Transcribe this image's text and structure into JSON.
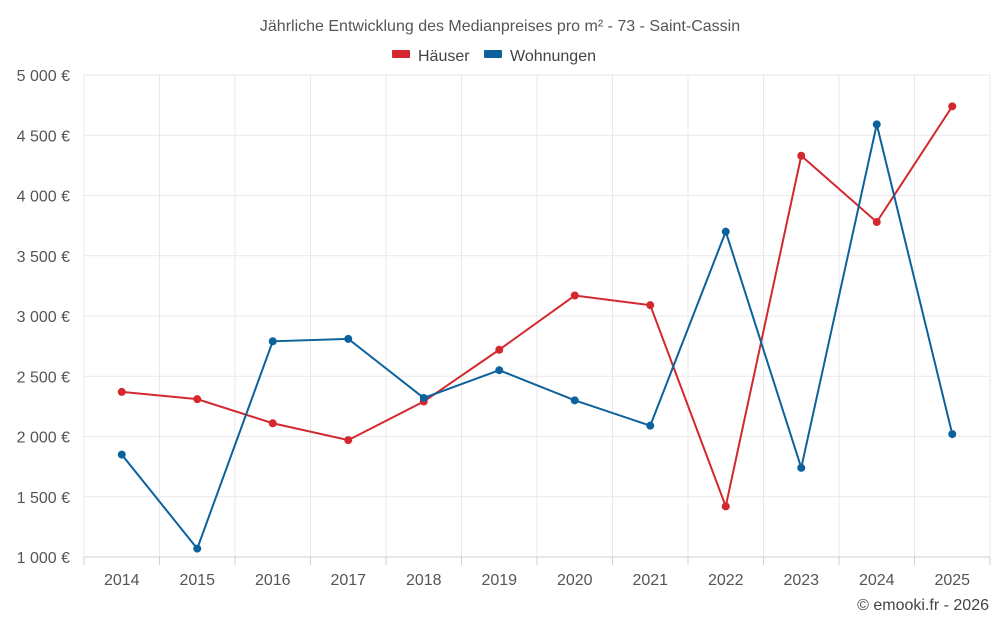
{
  "chart_data": {
    "type": "line",
    "title": "Jährliche Entwicklung des Medianpreises pro m² - 73 - Saint-Cassin",
    "xlabel": "",
    "ylabel": "",
    "categories": [
      "2014",
      "2015",
      "2016",
      "2017",
      "2018",
      "2019",
      "2020",
      "2021",
      "2022",
      "2023",
      "2024",
      "2025"
    ],
    "ylim": [
      1000,
      5000
    ],
    "yticks": [
      1000,
      1500,
      2000,
      2500,
      3000,
      3500,
      4000,
      4500,
      5000
    ],
    "ytick_labels": [
      "1 000 €",
      "1 500 €",
      "2 000 €",
      "2 500 €",
      "3 000 €",
      "3 500 €",
      "4 000 €",
      "4 500 €",
      "5 000 €"
    ],
    "grid": true,
    "legend_position": "top-center",
    "series": [
      {
        "name": "Häuser",
        "color": "#d3292e",
        "values": [
          2370,
          2310,
          2110,
          1970,
          2290,
          2720,
          3170,
          3090,
          1420,
          4330,
          3780,
          4740
        ]
      },
      {
        "name": "Wohnungen",
        "color": "#0b629c",
        "values": [
          1850,
          1070,
          2790,
          2810,
          2320,
          2550,
          2300,
          2090,
          3700,
          1740,
          4590,
          2020
        ]
      }
    ]
  },
  "credit": "© emooki.fr - 2026"
}
